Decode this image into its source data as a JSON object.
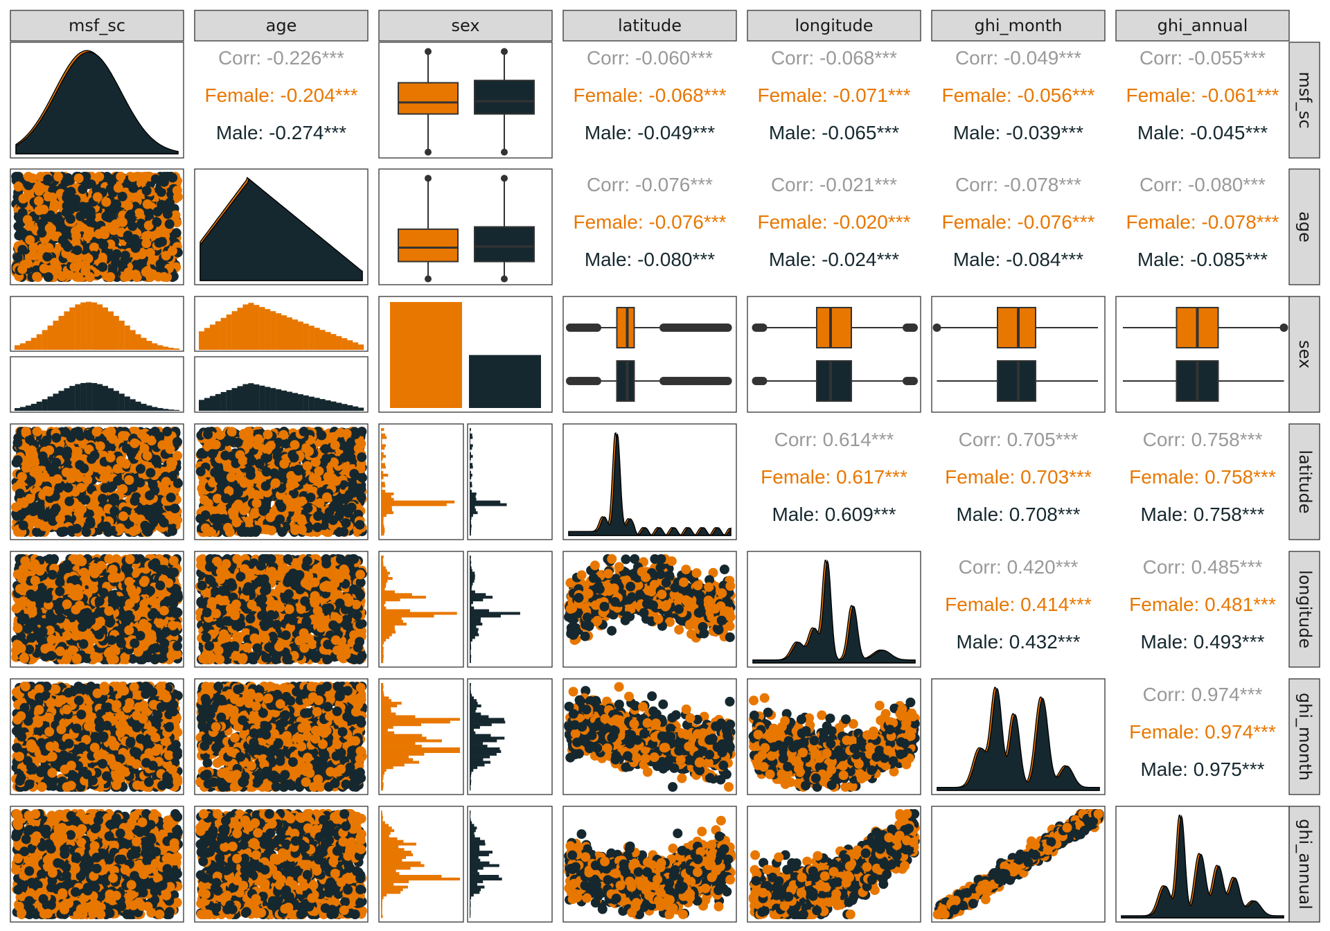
{
  "chart_data": {
    "type": "scatter",
    "title": "",
    "variables": [
      "msf_sc",
      "age",
      "sex",
      "latitude",
      "longitude",
      "ghi_month",
      "ghi_annual"
    ],
    "groups": [
      "Female",
      "Male"
    ],
    "colors": {
      "Female": "#E87700",
      "Male": "#16282F",
      "Overall": "#999999",
      "strip": "#D9D9D9",
      "border": "#333333"
    },
    "correlations": [
      {
        "row": "msf_sc",
        "col": "age",
        "overall": "Corr: -0.226***",
        "female": "Female: -0.204***",
        "male": "Male: -0.274***"
      },
      {
        "row": "msf_sc",
        "col": "latitude",
        "overall": "Corr: -0.060***",
        "female": "Female: -0.068***",
        "male": "Male: -0.049***"
      },
      {
        "row": "msf_sc",
        "col": "longitude",
        "overall": "Corr: -0.068***",
        "female": "Female: -0.071***",
        "male": "Male: -0.065***"
      },
      {
        "row": "msf_sc",
        "col": "ghi_month",
        "overall": "Corr: -0.049***",
        "female": "Female: -0.056***",
        "male": "Male: -0.039***"
      },
      {
        "row": "msf_sc",
        "col": "ghi_annual",
        "overall": "Corr: -0.055***",
        "female": "Female: -0.061***",
        "male": "Male: -0.045***"
      },
      {
        "row": "age",
        "col": "latitude",
        "overall": "Corr: -0.076***",
        "female": "Female: -0.076***",
        "male": "Male: -0.080***"
      },
      {
        "row": "age",
        "col": "longitude",
        "overall": "Corr: -0.021***",
        "female": "Female: -0.020***",
        "male": "Male: -0.024***"
      },
      {
        "row": "age",
        "col": "ghi_month",
        "overall": "Corr: -0.078***",
        "female": "Female: -0.076***",
        "male": "Male: -0.084***"
      },
      {
        "row": "age",
        "col": "ghi_annual",
        "overall": "Corr: -0.080***",
        "female": "Female: -0.078***",
        "male": "Male: -0.085***"
      },
      {
        "row": "latitude",
        "col": "longitude",
        "overall": "Corr: 0.614***",
        "female": "Female: 0.617***",
        "male": "Male: 0.609***"
      },
      {
        "row": "latitude",
        "col": "ghi_month",
        "overall": "Corr: 0.705***",
        "female": "Female: 0.703***",
        "male": "Male: 0.708***"
      },
      {
        "row": "latitude",
        "col": "ghi_annual",
        "overall": "Corr: 0.758***",
        "female": "Female: 0.758***",
        "male": "Male: 0.758***"
      },
      {
        "row": "longitude",
        "col": "ghi_month",
        "overall": "Corr: 0.420***",
        "female": "Female: 0.414***",
        "male": "Male: 0.432***"
      },
      {
        "row": "longitude",
        "col": "ghi_annual",
        "overall": "Corr: 0.485***",
        "female": "Female: 0.481***",
        "male": "Male: 0.493***"
      },
      {
        "row": "ghi_month",
        "col": "ghi_annual",
        "overall": "Corr: 0.974***",
        "female": "Female: 0.974***",
        "male": "Male: 0.975***"
      }
    ],
    "sex_counts": {
      "Female": 1.0,
      "Male": 0.5
    },
    "grid": false,
    "legend": "none"
  }
}
